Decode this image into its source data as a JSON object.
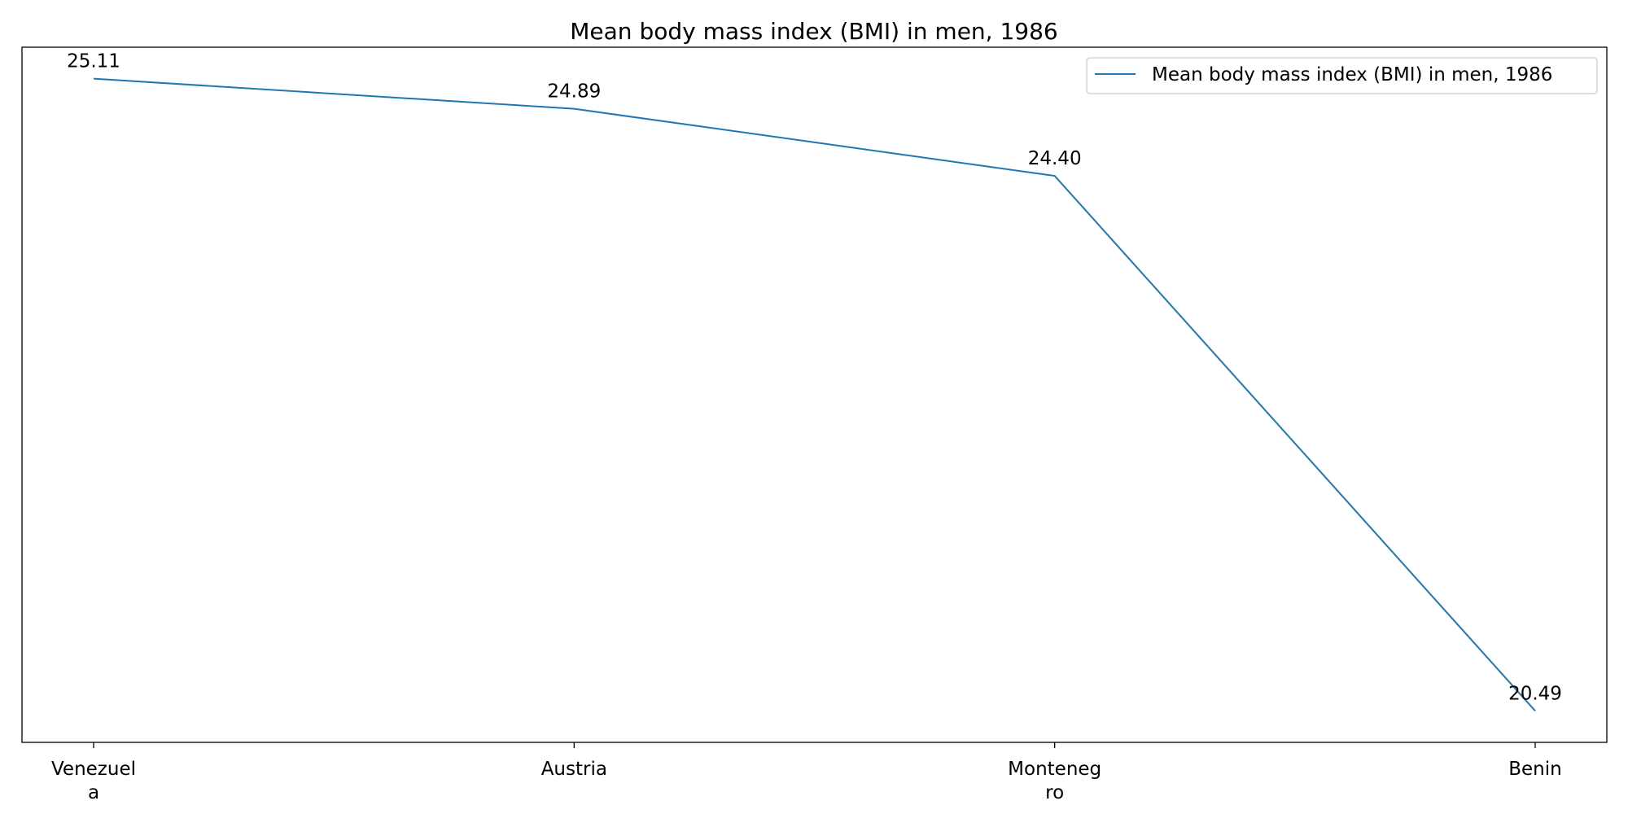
{
  "chart_data": {
    "type": "line",
    "title": "Mean body mass index (BMI) in men, 1986",
    "categories": [
      [
        "Venezuel",
        "a"
      ],
      [
        "Austria"
      ],
      [
        "Monteneg",
        "ro"
      ],
      [
        "Benin"
      ]
    ],
    "series": [
      {
        "name": "Mean body mass index (BMI) in men, 1986",
        "values": [
          25.11,
          24.89,
          24.4,
          20.49
        ],
        "labels": [
          "25.11",
          "24.89",
          "24.40",
          "20.49"
        ],
        "color": "#1f77b4"
      }
    ],
    "xlabel": "",
    "ylabel": "",
    "ylim": [
      20.26,
      25.34
    ],
    "y_ticks_visible": false,
    "grid": false,
    "legend_position": "top-right"
  }
}
